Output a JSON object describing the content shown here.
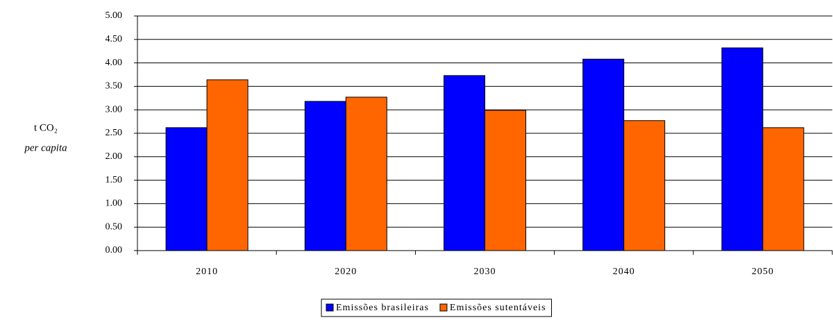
{
  "chart_data": {
    "type": "bar",
    "y_label": "t CO₂",
    "y_sublabel": "per capita",
    "categories": [
      "2010",
      "2020",
      "2030",
      "2040",
      "2050"
    ],
    "series": [
      {
        "name": "Emissões brasileiras",
        "color": "#0000ff",
        "values": [
          2.62,
          3.18,
          3.73,
          4.08,
          4.32
        ]
      },
      {
        "name": "Emissões sutentáveis",
        "color": "#ff6600",
        "values": [
          3.64,
          3.27,
          2.99,
          2.77,
          2.62
        ]
      }
    ],
    "ylim": [
      0,
      5
    ],
    "yticks": [
      {
        "value": 0,
        "label": "0.00"
      },
      {
        "value": 0.5,
        "label": "0.50"
      },
      {
        "value": 1,
        "label": "1.00"
      },
      {
        "value": 1.5,
        "label": "1.50"
      },
      {
        "value": 2,
        "label": "2.00"
      },
      {
        "value": 2.5,
        "label": "2.50"
      },
      {
        "value": 3,
        "label": "3.00"
      },
      {
        "value": 3.5,
        "label": "3.50"
      },
      {
        "value": 4,
        "label": "4.00"
      },
      {
        "value": 4.5,
        "label": "4.50"
      },
      {
        "value": 5,
        "label": "5.00"
      }
    ],
    "grid": true,
    "legend": "bottom"
  }
}
